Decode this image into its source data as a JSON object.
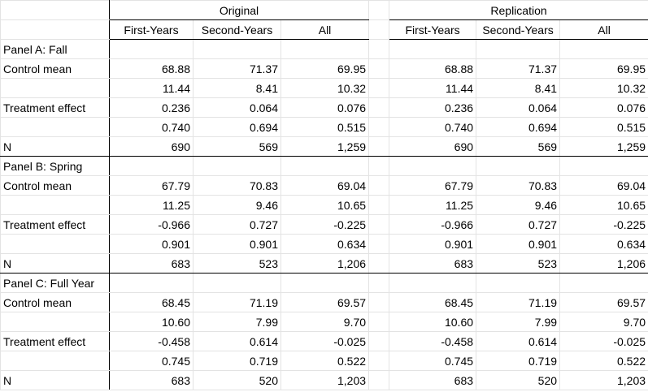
{
  "header": {
    "groups": [
      "Original",
      "Replication"
    ],
    "subcolumns": [
      "First-Years",
      "Second-Years",
      "All"
    ]
  },
  "panels": [
    {
      "title": "Panel A: Fall",
      "rows": [
        {
          "label": "Control mean",
          "original": [
            "68.88",
            "71.37",
            "69.95"
          ],
          "replication": [
            "68.88",
            "71.37",
            "69.95"
          ]
        },
        {
          "label": "",
          "original": [
            "11.44",
            "8.41",
            "10.32"
          ],
          "replication": [
            "11.44",
            "8.41",
            "10.32"
          ]
        },
        {
          "label": "Treatment effect",
          "original": [
            "0.236",
            "0.064",
            "0.076"
          ],
          "replication": [
            "0.236",
            "0.064",
            "0.076"
          ]
        },
        {
          "label": "",
          "original": [
            "0.740",
            "0.694",
            "0.515"
          ],
          "replication": [
            "0.740",
            "0.694",
            "0.515"
          ]
        },
        {
          "label": "N",
          "original": [
            "690",
            "569",
            "1,259"
          ],
          "replication": [
            "690",
            "569",
            "1,259"
          ]
        }
      ]
    },
    {
      "title": "Panel B: Spring",
      "rows": [
        {
          "label": "Control mean",
          "original": [
            "67.79",
            "70.83",
            "69.04"
          ],
          "replication": [
            "67.79",
            "70.83",
            "69.04"
          ]
        },
        {
          "label": "",
          "original": [
            "11.25",
            "9.46",
            "10.65"
          ],
          "replication": [
            "11.25",
            "9.46",
            "10.65"
          ]
        },
        {
          "label": "Treatment effect",
          "original": [
            "-0.966",
            "0.727",
            "-0.225"
          ],
          "replication": [
            "-0.966",
            "0.727",
            "-0.225"
          ]
        },
        {
          "label": "",
          "original": [
            "0.901",
            "0.901",
            "0.634"
          ],
          "replication": [
            "0.901",
            "0.901",
            "0.634"
          ]
        },
        {
          "label": "N",
          "original": [
            "683",
            "523",
            "1,206"
          ],
          "replication": [
            "683",
            "523",
            "1,206"
          ]
        }
      ]
    },
    {
      "title": "Panel C: Full Year",
      "rows": [
        {
          "label": "Control mean",
          "original": [
            "68.45",
            "71.19",
            "69.57"
          ],
          "replication": [
            "68.45",
            "71.19",
            "69.57"
          ]
        },
        {
          "label": "",
          "original": [
            "10.60",
            "7.99",
            "9.70"
          ],
          "replication": [
            "10.60",
            "7.99",
            "9.70"
          ]
        },
        {
          "label": "Treatment effect",
          "original": [
            "-0.458",
            "0.614",
            "-0.025"
          ],
          "replication": [
            "-0.458",
            "0.614",
            "-0.025"
          ]
        },
        {
          "label": "",
          "original": [
            "0.745",
            "0.719",
            "0.522"
          ],
          "replication": [
            "0.745",
            "0.719",
            "0.522"
          ]
        },
        {
          "label": "N",
          "original": [
            "683",
            "520",
            "1,203"
          ],
          "replication": [
            "683",
            "520",
            "1,203"
          ]
        }
      ]
    }
  ]
}
